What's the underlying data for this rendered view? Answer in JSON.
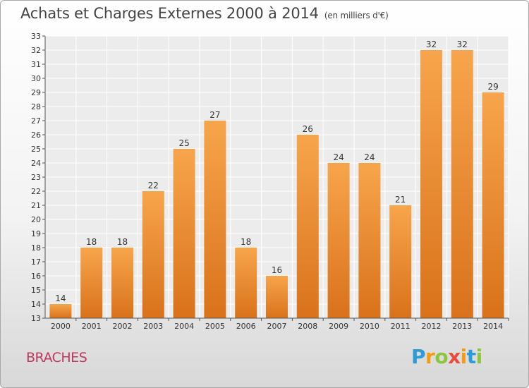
{
  "header": {
    "title": "Achats et Charges Externes 2000 à 2014",
    "unit": "(en milliers d'€)"
  },
  "footer": {
    "commune": "BRACHES",
    "logo_letters": [
      "P",
      "r",
      "o",
      "x",
      "i",
      "t",
      "i"
    ],
    "logo_colors": [
      "#2d9bd6",
      "#f39c12",
      "#8cc63f",
      "#e74c3c",
      "#f39c12",
      "#2d9bd6",
      "#8cc63f"
    ]
  },
  "colors": {
    "bar_top": "#f7a54c",
    "bar_bottom": "#d9721a",
    "grid": "#ffffff",
    "plot_bg": "#ececec"
  },
  "chart_data": {
    "type": "bar",
    "title": "Achats et Charges Externes 2000 à 2014",
    "subtitle": "(en milliers d'€)",
    "categories": [
      "2000",
      "2001",
      "2002",
      "2003",
      "2004",
      "2005",
      "2006",
      "2007",
      "2008",
      "2009",
      "2010",
      "2011",
      "2012",
      "2013",
      "2014"
    ],
    "values": [
      14,
      18,
      18,
      22,
      25,
      27,
      18,
      16,
      26,
      24,
      24,
      21,
      32,
      32,
      29
    ],
    "ylim": [
      13,
      33
    ],
    "yticks": [
      13,
      14,
      15,
      16,
      17,
      18,
      19,
      20,
      21,
      22,
      23,
      24,
      25,
      26,
      27,
      28,
      29,
      30,
      31,
      32,
      33
    ],
    "xlabel": "",
    "ylabel": "",
    "grid": true,
    "legend": "none"
  }
}
